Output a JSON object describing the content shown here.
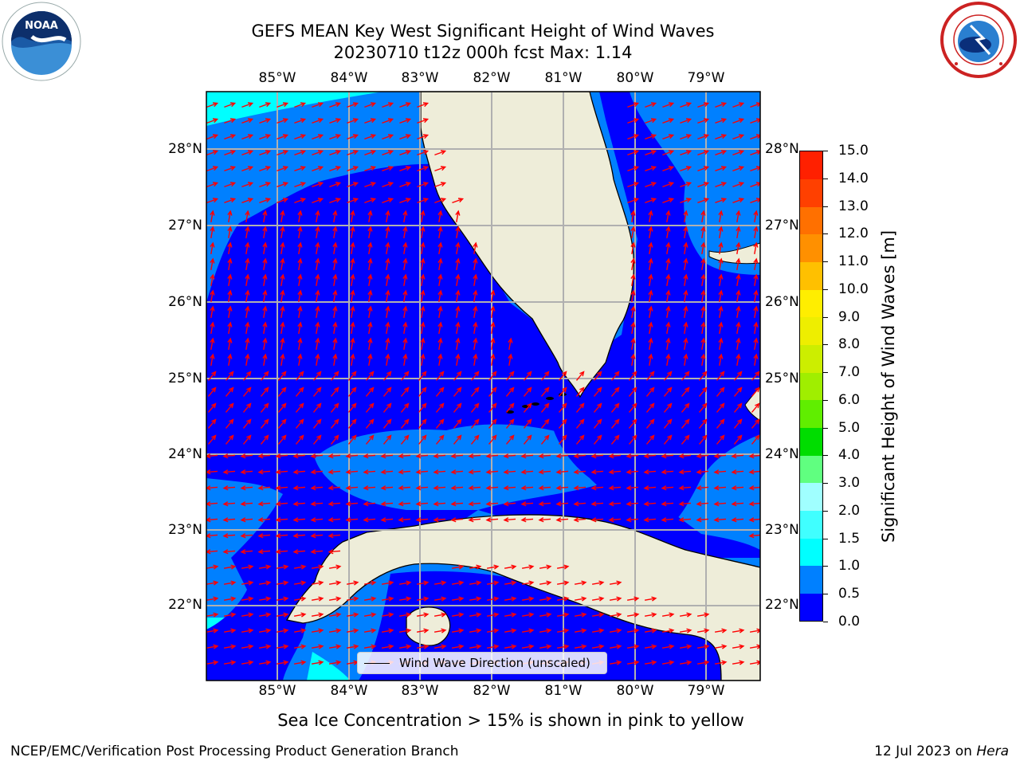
{
  "title": {
    "line1": "GEFS MEAN Key West Significant Height of Wind Waves",
    "line2": "20230710 t12z 000h fcst   Max: 1.14"
  },
  "logos": {
    "left": "noaa-logo",
    "left_text": "NOAA",
    "right": "nws-logo"
  },
  "map": {
    "lon_labels": [
      "85°W",
      "84°W",
      "83°W",
      "82°W",
      "81°W",
      "80°W",
      "79°W"
    ],
    "lat_labels": [
      "28°N",
      "27°N",
      "26°N",
      "25°N",
      "24°N",
      "23°N",
      "22°N"
    ],
    "legend_label": "Wind Wave Direction (unscaled)",
    "arrow_color": "#ff0000"
  },
  "colorbar": {
    "title": "Significant Height of Wind Waves [m]",
    "tick_labels": [
      "0.0",
      "0.5",
      "1.0",
      "1.5",
      "2.0",
      "3.0",
      "4.0",
      "5.0",
      "6.0",
      "7.0",
      "8.0",
      "9.0",
      "10.0",
      "11.0",
      "12.0",
      "13.0",
      "14.0",
      "15.0"
    ],
    "colors": [
      "#0000ff",
      "#0080ff",
      "#00ffff",
      "#40ffff",
      "#a0ffff",
      "#60ff80",
      "#00dd00",
      "#60ee00",
      "#a0ee00",
      "#ccee00",
      "#eeee00",
      "#ffee00",
      "#ffc000",
      "#ff9000",
      "#ff7000",
      "#ff4000",
      "#ff2000"
    ]
  },
  "note": "Sea Ice Concentration > 15% is shown in pink to yellow",
  "footer": {
    "left": "NCEP/EMC/Verification Post Processing Product Generation Branch",
    "date": "12 Jul 2023 on ",
    "host": "Hera"
  }
}
